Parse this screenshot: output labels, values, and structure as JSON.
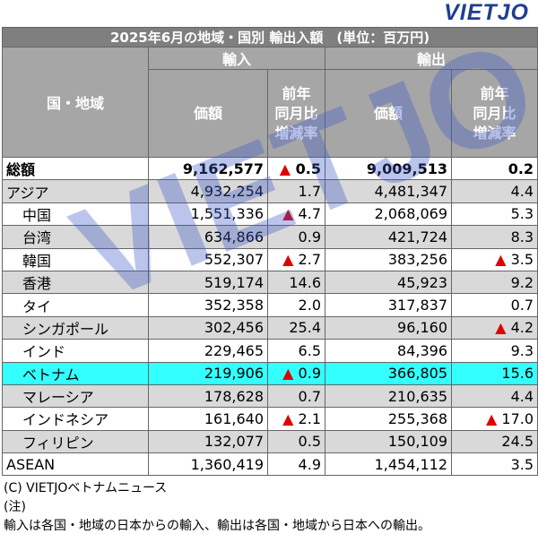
{
  "logo": "VIETJO",
  "table": {
    "title": "2025年6月の地域・国別 輸出入額　(単位：百万円)",
    "region_header": "国・地域",
    "import_header": "輸入",
    "export_header": "輸出",
    "columns": [
      "価額",
      "前年\n同月比\n増減率",
      "価額",
      "前年\n同月比\n増減率"
    ],
    "rows": [
      [
        "総額",
        "9,162,577",
        "▲ 0.5",
        "9,009,513",
        "0.2"
      ],
      [
        "アジア",
        "4,932,254",
        "1.7",
        "4,481,347",
        "4.4"
      ],
      [
        "中国",
        "1,551,336",
        "▲ 4.7",
        "2,068,069",
        "5.3"
      ],
      [
        "台湾",
        "634,866",
        "0.9",
        "421,724",
        "8.3"
      ],
      [
        "韓国",
        "552,307",
        "▲ 2.7",
        "383,256",
        "▲ 3.5"
      ],
      [
        "香港",
        "519,174",
        "14.6",
        "45,923",
        "9.2"
      ],
      [
        "タイ",
        "352,358",
        "2.0",
        "317,837",
        "0.7"
      ],
      [
        "シンガポール",
        "302,456",
        "25.4",
        "96,160",
        "▲ 4.2"
      ],
      [
        "インド",
        "229,465",
        "6.5",
        "84,396",
        "9.3"
      ],
      [
        "ベトナム",
        "219,906",
        "▲ 0.9",
        "366,805",
        "15.6"
      ],
      [
        "マレーシア",
        "178,628",
        "0.7",
        "210,635",
        "4.4"
      ],
      [
        "インドネシア",
        "161,640",
        "▲ 2.1",
        "255,368",
        "▲ 17.0"
      ],
      [
        "フィリピン",
        "132,077",
        "0.5",
        "150,109",
        "24.5"
      ],
      [
        "ASEAN",
        "1,360,419",
        "4.9",
        "1,454,112",
        "3.5"
      ]
    ]
  },
  "footer": [
    "(C) VIETJOベトナムニュース",
    "(注)",
    "輸入は各国・地域の日本からの輸入、輸出は各国・地域から日本への輸出。"
  ]
}
